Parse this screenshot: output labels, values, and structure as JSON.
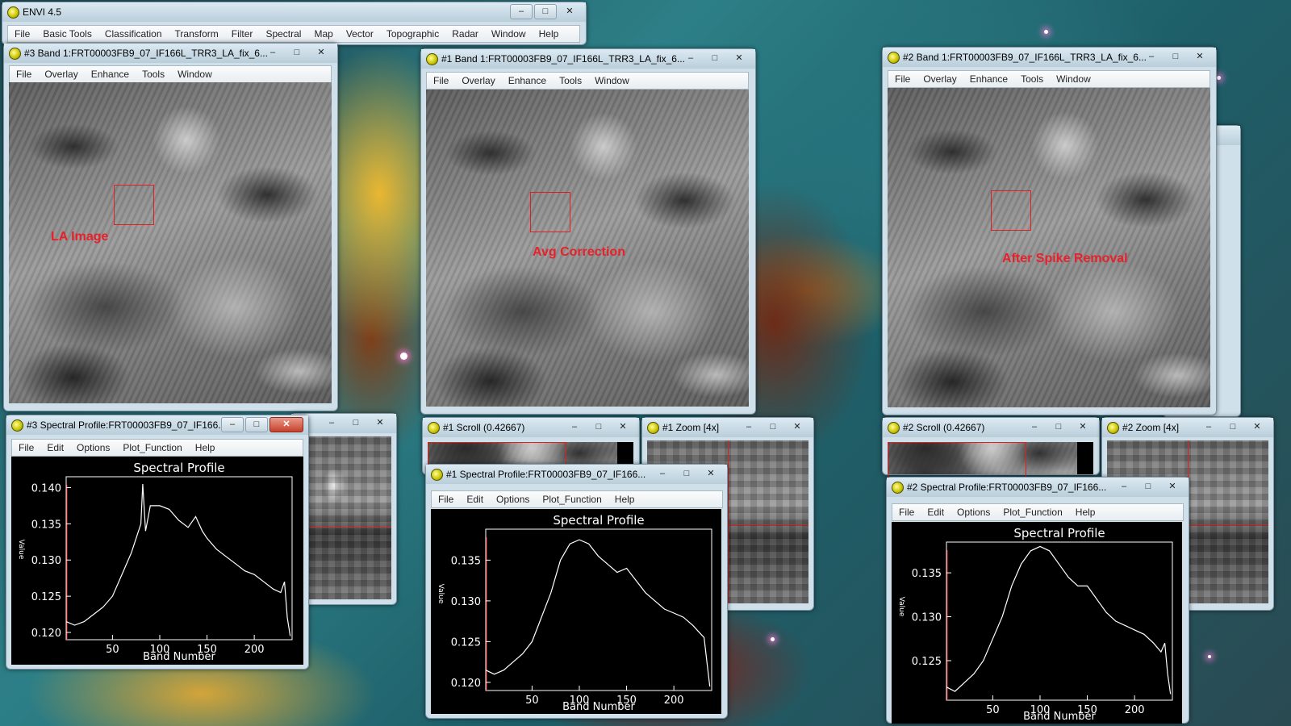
{
  "desktop": {
    "accent_red": "#e02020",
    "annotation_color": "#e8202a"
  },
  "envi_main": {
    "title": "ENVI 4.5",
    "menu": [
      "File",
      "Basic Tools",
      "Classification",
      "Transform",
      "Filter",
      "Spectral",
      "Map",
      "Vector",
      "Topographic",
      "Radar",
      "Window",
      "Help"
    ]
  },
  "display_menu": [
    "File",
    "Overlay",
    "Enhance",
    "Tools",
    "Window"
  ],
  "plot_menu": [
    "File",
    "Edit",
    "Options",
    "Plot_Function",
    "Help"
  ],
  "controls": {
    "minimize": "–",
    "maximize": "□",
    "close": "✕"
  },
  "image3": {
    "title": "#3 Band 1:FRT00003FB9_07_IF166L_TRR3_LA_fix_6...",
    "annotation": "LA Image"
  },
  "image1": {
    "title": "#1 Band 1:FRT00003FB9_07_IF166L_TRR3_LA_fix_6...",
    "annotation": "Avg Correction"
  },
  "image2": {
    "title": "#2 Band 1:FRT00003FB9_07_IF166L_TRR3_LA_fix_6...",
    "annotation": "After Spike Removal"
  },
  "scroll1": {
    "title": "#1 Scroll (0.42667)"
  },
  "zoom1": {
    "title": "#1 Zoom [4x]"
  },
  "scroll2": {
    "title": "#2 Scroll (0.42667)"
  },
  "zoom2": {
    "title": "#2 Zoom [4x]"
  },
  "spectral3": {
    "title": "#3 Spectral Profile:FRT00003FB9_07_IF166...",
    "plot_title": "Spectral Profile",
    "xlabel": "Band Number",
    "ylabel": "Value",
    "xticks": [
      "50",
      "100",
      "150",
      "200"
    ],
    "yticks": [
      "0.120",
      "0.125",
      "0.130",
      "0.135",
      "0.140"
    ]
  },
  "spectral1": {
    "title": "#1 Spectral Profile:FRT00003FB9_07_IF166...",
    "plot_title": "Spectral Profile",
    "xlabel": "Band Number",
    "ylabel": "Value",
    "xticks": [
      "50",
      "100",
      "150",
      "200"
    ],
    "yticks": [
      "0.120",
      "0.125",
      "0.130",
      "0.135"
    ]
  },
  "spectral2": {
    "title": "#2 Spectral Profile:FRT00003FB9_07_IF166...",
    "plot_title": "Spectral Profile",
    "xlabel": "Band Number",
    "ylabel": "Value",
    "xticks": [
      "50",
      "100",
      "150",
      "200"
    ],
    "yticks": [
      "0.125",
      "0.130",
      "0.135"
    ]
  },
  "chart_data": [
    {
      "type": "line",
      "title": "Spectral Profile",
      "xlabel": "Band Number",
      "ylabel": "Value",
      "xlim": [
        1,
        240
      ],
      "ylim": [
        0.119,
        0.1415
      ],
      "grid": false,
      "x": [
        1,
        10,
        20,
        30,
        40,
        50,
        60,
        70,
        75,
        80,
        82,
        85,
        90,
        100,
        110,
        120,
        130,
        138,
        145,
        150,
        160,
        170,
        180,
        190,
        200,
        210,
        220,
        228,
        232,
        235,
        238
      ],
      "series": [
        {
          "values": [
            0.1215,
            0.121,
            0.1215,
            0.1225,
            0.1235,
            0.125,
            0.128,
            0.131,
            0.133,
            0.135,
            0.1405,
            0.134,
            0.1375,
            0.1375,
            0.137,
            0.1355,
            0.1345,
            0.136,
            0.134,
            0.133,
            0.1315,
            0.1305,
            0.1295,
            0.1285,
            0.128,
            0.127,
            0.126,
            0.1255,
            0.127,
            0.122,
            0.1195
          ]
        }
      ]
    },
    {
      "type": "line",
      "title": "Spectral Profile",
      "xlabel": "Band Number",
      "ylabel": "Value",
      "xlim": [
        1,
        240
      ],
      "ylim": [
        0.119,
        0.1388
      ],
      "grid": false,
      "x": [
        1,
        10,
        20,
        30,
        40,
        50,
        60,
        70,
        80,
        90,
        100,
        110,
        120,
        130,
        140,
        150,
        160,
        170,
        180,
        190,
        200,
        210,
        220,
        228,
        232,
        235,
        238
      ],
      "series": [
        {
          "values": [
            0.1215,
            0.121,
            0.1215,
            0.1225,
            0.1235,
            0.125,
            0.128,
            0.131,
            0.135,
            0.137,
            0.1375,
            0.137,
            0.1355,
            0.1345,
            0.1335,
            0.134,
            0.1325,
            0.131,
            0.13,
            0.129,
            0.1285,
            0.128,
            0.127,
            0.126,
            0.1255,
            0.1225,
            0.1195
          ]
        }
      ]
    },
    {
      "type": "line",
      "title": "Spectral Profile",
      "xlabel": "Band Number",
      "ylabel": "Value",
      "xlim": [
        1,
        240
      ],
      "ylim": [
        0.1205,
        0.1385
      ],
      "grid": false,
      "x": [
        1,
        10,
        20,
        30,
        40,
        50,
        60,
        70,
        80,
        90,
        100,
        110,
        120,
        130,
        140,
        150,
        160,
        170,
        180,
        190,
        200,
        210,
        220,
        228,
        232,
        235,
        238
      ],
      "series": [
        {
          "values": [
            0.122,
            0.1215,
            0.1225,
            0.1235,
            0.125,
            0.1275,
            0.13,
            0.1335,
            0.136,
            0.1375,
            0.138,
            0.1375,
            0.136,
            0.1345,
            0.1335,
            0.1335,
            0.132,
            0.1305,
            0.1295,
            0.129,
            0.1285,
            0.128,
            0.127,
            0.126,
            0.127,
            0.1235,
            0.1212
          ]
        }
      ]
    }
  ]
}
